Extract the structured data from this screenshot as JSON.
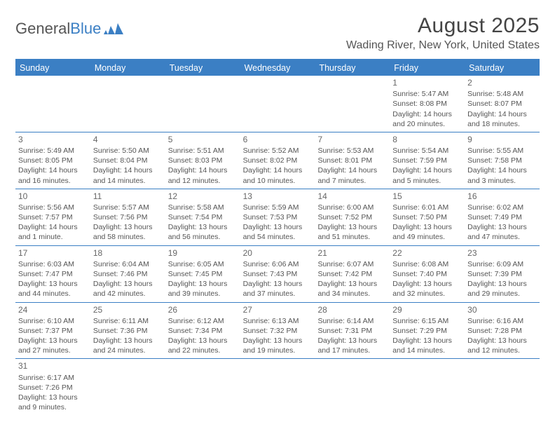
{
  "logo": {
    "part1": "General",
    "part2": "Blue"
  },
  "title": "August 2025",
  "location": "Wading River, New York, United States",
  "colors": {
    "header_bg": "#3b7fc4",
    "header_text": "#ffffff",
    "border": "#3b7fc4",
    "text": "#555555",
    "background": "#ffffff"
  },
  "day_names": [
    "Sunday",
    "Monday",
    "Tuesday",
    "Wednesday",
    "Thursday",
    "Friday",
    "Saturday"
  ],
  "weeks": [
    [
      null,
      null,
      null,
      null,
      null,
      {
        "n": "1",
        "sr": "Sunrise: 5:47 AM",
        "ss": "Sunset: 8:08 PM",
        "d1": "Daylight: 14 hours",
        "d2": "and 20 minutes."
      },
      {
        "n": "2",
        "sr": "Sunrise: 5:48 AM",
        "ss": "Sunset: 8:07 PM",
        "d1": "Daylight: 14 hours",
        "d2": "and 18 minutes."
      }
    ],
    [
      {
        "n": "3",
        "sr": "Sunrise: 5:49 AM",
        "ss": "Sunset: 8:05 PM",
        "d1": "Daylight: 14 hours",
        "d2": "and 16 minutes."
      },
      {
        "n": "4",
        "sr": "Sunrise: 5:50 AM",
        "ss": "Sunset: 8:04 PM",
        "d1": "Daylight: 14 hours",
        "d2": "and 14 minutes."
      },
      {
        "n": "5",
        "sr": "Sunrise: 5:51 AM",
        "ss": "Sunset: 8:03 PM",
        "d1": "Daylight: 14 hours",
        "d2": "and 12 minutes."
      },
      {
        "n": "6",
        "sr": "Sunrise: 5:52 AM",
        "ss": "Sunset: 8:02 PM",
        "d1": "Daylight: 14 hours",
        "d2": "and 10 minutes."
      },
      {
        "n": "7",
        "sr": "Sunrise: 5:53 AM",
        "ss": "Sunset: 8:01 PM",
        "d1": "Daylight: 14 hours",
        "d2": "and 7 minutes."
      },
      {
        "n": "8",
        "sr": "Sunrise: 5:54 AM",
        "ss": "Sunset: 7:59 PM",
        "d1": "Daylight: 14 hours",
        "d2": "and 5 minutes."
      },
      {
        "n": "9",
        "sr": "Sunrise: 5:55 AM",
        "ss": "Sunset: 7:58 PM",
        "d1": "Daylight: 14 hours",
        "d2": "and 3 minutes."
      }
    ],
    [
      {
        "n": "10",
        "sr": "Sunrise: 5:56 AM",
        "ss": "Sunset: 7:57 PM",
        "d1": "Daylight: 14 hours",
        "d2": "and 1 minute."
      },
      {
        "n": "11",
        "sr": "Sunrise: 5:57 AM",
        "ss": "Sunset: 7:56 PM",
        "d1": "Daylight: 13 hours",
        "d2": "and 58 minutes."
      },
      {
        "n": "12",
        "sr": "Sunrise: 5:58 AM",
        "ss": "Sunset: 7:54 PM",
        "d1": "Daylight: 13 hours",
        "d2": "and 56 minutes."
      },
      {
        "n": "13",
        "sr": "Sunrise: 5:59 AM",
        "ss": "Sunset: 7:53 PM",
        "d1": "Daylight: 13 hours",
        "d2": "and 54 minutes."
      },
      {
        "n": "14",
        "sr": "Sunrise: 6:00 AM",
        "ss": "Sunset: 7:52 PM",
        "d1": "Daylight: 13 hours",
        "d2": "and 51 minutes."
      },
      {
        "n": "15",
        "sr": "Sunrise: 6:01 AM",
        "ss": "Sunset: 7:50 PM",
        "d1": "Daylight: 13 hours",
        "d2": "and 49 minutes."
      },
      {
        "n": "16",
        "sr": "Sunrise: 6:02 AM",
        "ss": "Sunset: 7:49 PM",
        "d1": "Daylight: 13 hours",
        "d2": "and 47 minutes."
      }
    ],
    [
      {
        "n": "17",
        "sr": "Sunrise: 6:03 AM",
        "ss": "Sunset: 7:47 PM",
        "d1": "Daylight: 13 hours",
        "d2": "and 44 minutes."
      },
      {
        "n": "18",
        "sr": "Sunrise: 6:04 AM",
        "ss": "Sunset: 7:46 PM",
        "d1": "Daylight: 13 hours",
        "d2": "and 42 minutes."
      },
      {
        "n": "19",
        "sr": "Sunrise: 6:05 AM",
        "ss": "Sunset: 7:45 PM",
        "d1": "Daylight: 13 hours",
        "d2": "and 39 minutes."
      },
      {
        "n": "20",
        "sr": "Sunrise: 6:06 AM",
        "ss": "Sunset: 7:43 PM",
        "d1": "Daylight: 13 hours",
        "d2": "and 37 minutes."
      },
      {
        "n": "21",
        "sr": "Sunrise: 6:07 AM",
        "ss": "Sunset: 7:42 PM",
        "d1": "Daylight: 13 hours",
        "d2": "and 34 minutes."
      },
      {
        "n": "22",
        "sr": "Sunrise: 6:08 AM",
        "ss": "Sunset: 7:40 PM",
        "d1": "Daylight: 13 hours",
        "d2": "and 32 minutes."
      },
      {
        "n": "23",
        "sr": "Sunrise: 6:09 AM",
        "ss": "Sunset: 7:39 PM",
        "d1": "Daylight: 13 hours",
        "d2": "and 29 minutes."
      }
    ],
    [
      {
        "n": "24",
        "sr": "Sunrise: 6:10 AM",
        "ss": "Sunset: 7:37 PM",
        "d1": "Daylight: 13 hours",
        "d2": "and 27 minutes."
      },
      {
        "n": "25",
        "sr": "Sunrise: 6:11 AM",
        "ss": "Sunset: 7:36 PM",
        "d1": "Daylight: 13 hours",
        "d2": "and 24 minutes."
      },
      {
        "n": "26",
        "sr": "Sunrise: 6:12 AM",
        "ss": "Sunset: 7:34 PM",
        "d1": "Daylight: 13 hours",
        "d2": "and 22 minutes."
      },
      {
        "n": "27",
        "sr": "Sunrise: 6:13 AM",
        "ss": "Sunset: 7:32 PM",
        "d1": "Daylight: 13 hours",
        "d2": "and 19 minutes."
      },
      {
        "n": "28",
        "sr": "Sunrise: 6:14 AM",
        "ss": "Sunset: 7:31 PM",
        "d1": "Daylight: 13 hours",
        "d2": "and 17 minutes."
      },
      {
        "n": "29",
        "sr": "Sunrise: 6:15 AM",
        "ss": "Sunset: 7:29 PM",
        "d1": "Daylight: 13 hours",
        "d2": "and 14 minutes."
      },
      {
        "n": "30",
        "sr": "Sunrise: 6:16 AM",
        "ss": "Sunset: 7:28 PM",
        "d1": "Daylight: 13 hours",
        "d2": "and 12 minutes."
      }
    ],
    [
      {
        "n": "31",
        "sr": "Sunrise: 6:17 AM",
        "ss": "Sunset: 7:26 PM",
        "d1": "Daylight: 13 hours",
        "d2": "and 9 minutes."
      },
      null,
      null,
      null,
      null,
      null,
      null
    ]
  ]
}
